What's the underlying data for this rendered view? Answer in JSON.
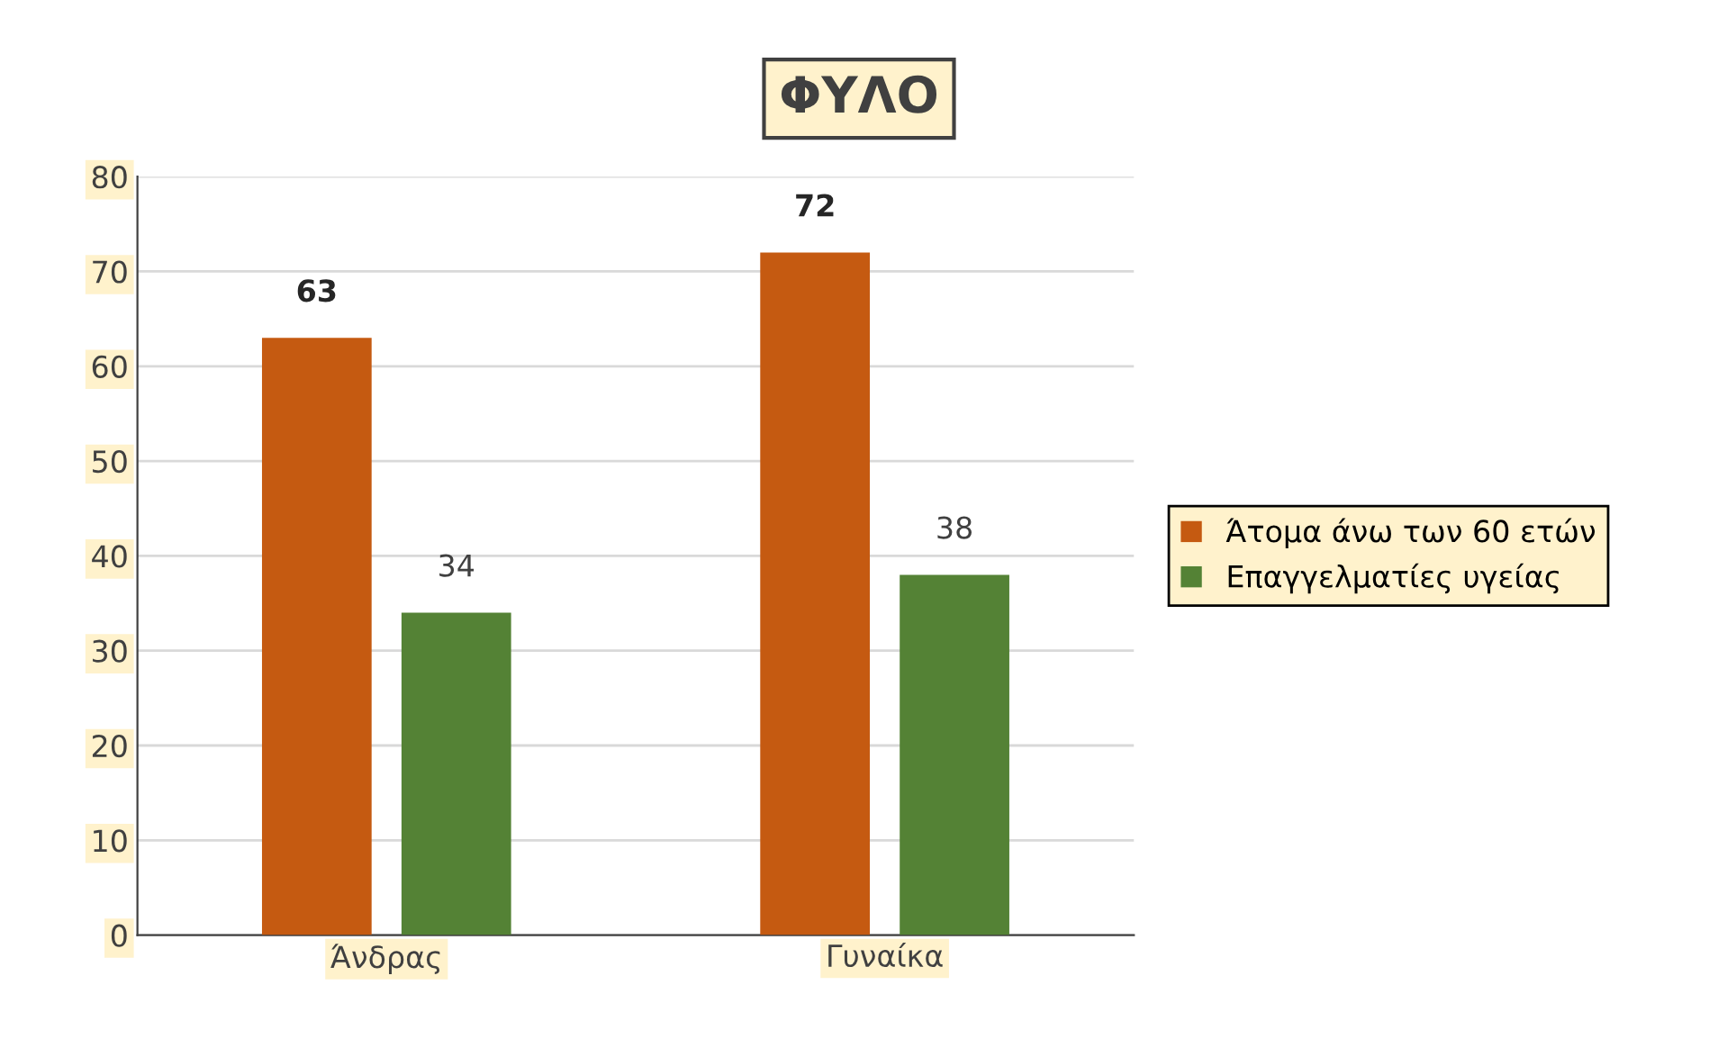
{
  "chart_data": {
    "type": "bar",
    "title": "ΦΥΛΟ",
    "categories": [
      "Άνδρας",
      "Γυναίκα"
    ],
    "series": [
      {
        "name": "Άτομα άνω των 60 ετών",
        "color": "#c55a11",
        "values": [
          63,
          72
        ]
      },
      {
        "name": "Επαγγελματίες υγείας",
        "color": "#548235",
        "values": [
          34,
          38
        ]
      }
    ],
    "ylim": [
      0,
      80
    ],
    "yticks": [
      0,
      10,
      20,
      30,
      40,
      50,
      60,
      70,
      80
    ],
    "grid": "y",
    "legend": "right",
    "data_labels": true
  }
}
